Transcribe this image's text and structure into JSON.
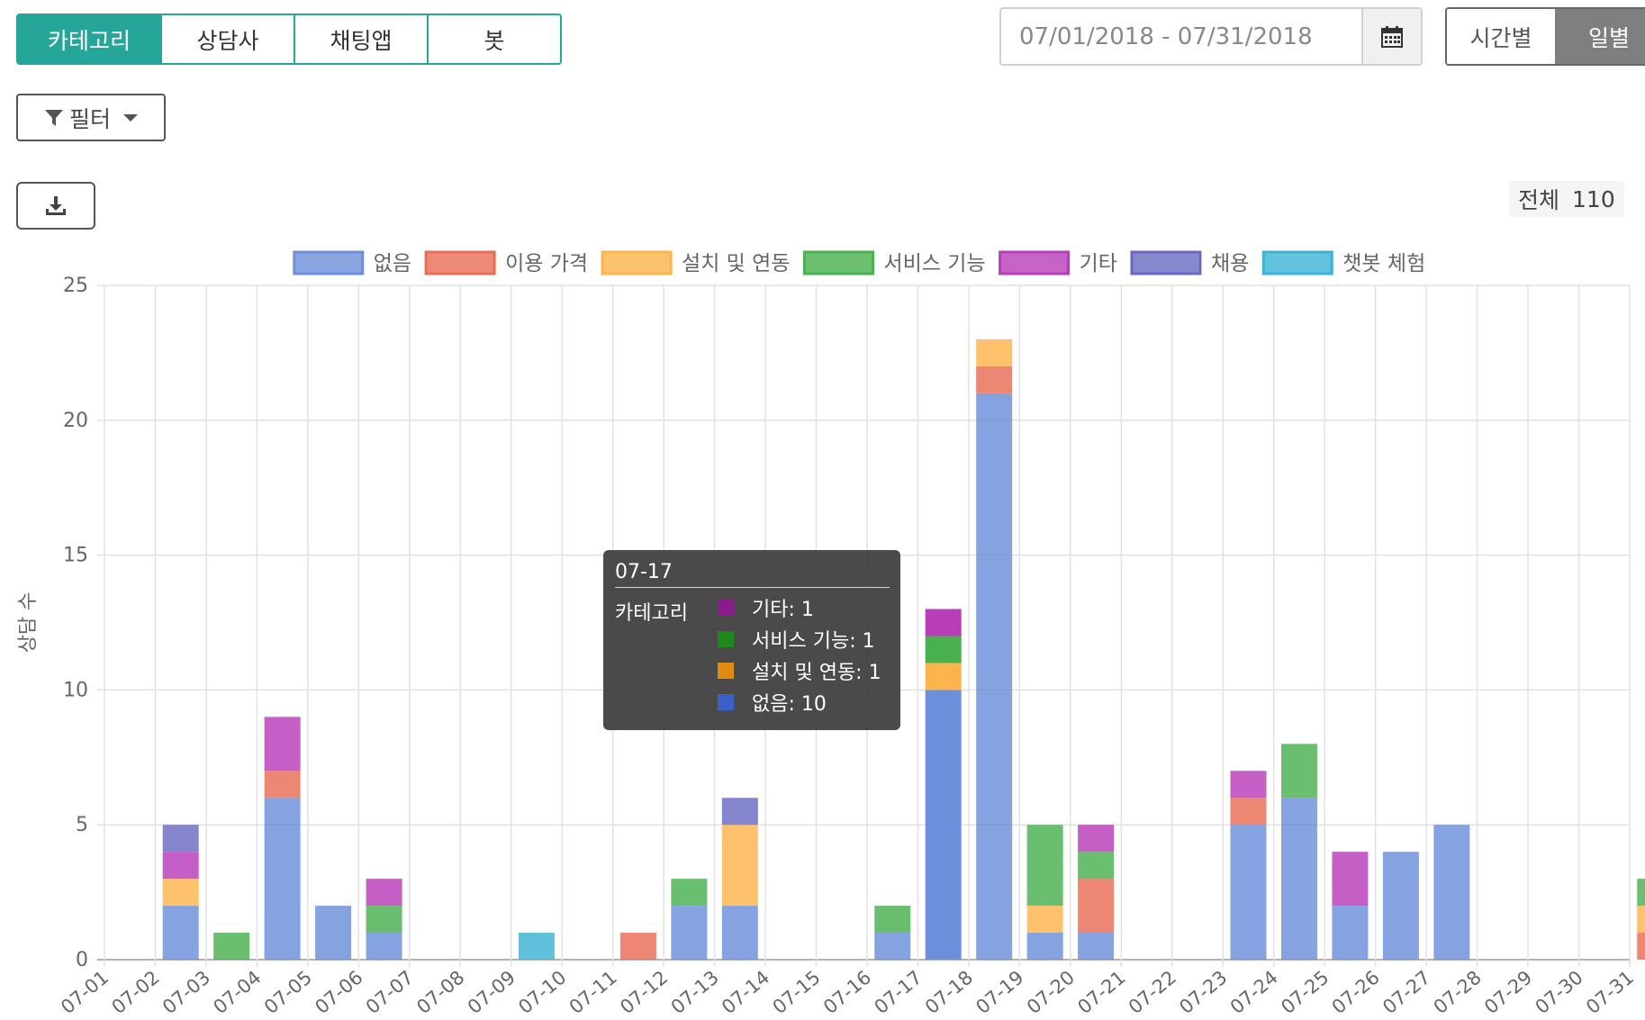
{
  "tabs": [
    "카테고리",
    "상담사",
    "채팅앱",
    "봇"
  ],
  "filter_label": "필터",
  "date_range": "07/01/2018 - 07/31/2018",
  "period": [
    "시간별",
    "일별"
  ],
  "total": {
    "label": "전체",
    "value": "110"
  },
  "colors": {
    "accent": "#26a599",
    "active_period": "#7f7f7f"
  },
  "chart_data": {
    "type": "bar",
    "stacked": true,
    "ylabel": "상담 수",
    "ylim": [
      0,
      25
    ],
    "yticks": [
      0,
      5,
      10,
      15,
      20,
      25
    ],
    "grid": true,
    "legend_position": "top",
    "categories": [
      "07-01",
      "07-02",
      "07-03",
      "07-04",
      "07-05",
      "07-06",
      "07-07",
      "07-08",
      "07-09",
      "07-10",
      "07-11",
      "07-12",
      "07-13",
      "07-14",
      "07-15",
      "07-16",
      "07-17",
      "07-18",
      "07-19",
      "07-20",
      "07-21",
      "07-22",
      "07-23",
      "07-24",
      "07-25",
      "07-26",
      "07-27",
      "07-28",
      "07-29",
      "07-30",
      "07-31"
    ],
    "series": [
      {
        "name": "없음",
        "color": "#6b8fdb",
        "values": [
          0,
          2,
          0,
          6,
          2,
          1,
          0,
          0,
          0,
          0,
          0,
          2,
          2,
          0,
          0,
          1,
          10,
          21,
          1,
          1,
          0,
          0,
          5,
          6,
          2,
          4,
          5,
          0,
          0,
          0,
          0
        ]
      },
      {
        "name": "이용 가격",
        "color": "#e96c55",
        "values": [
          0,
          0,
          0,
          1,
          0,
          0,
          0,
          0,
          0,
          0,
          1,
          0,
          0,
          0,
          0,
          0,
          0,
          1,
          0,
          2,
          0,
          0,
          1,
          0,
          0,
          0,
          0,
          0,
          0,
          0,
          1
        ]
      },
      {
        "name": "설치 및 연동",
        "color": "#fdb54b",
        "values": [
          0,
          1,
          0,
          0,
          0,
          0,
          0,
          0,
          0,
          0,
          0,
          0,
          3,
          0,
          0,
          0,
          1,
          1,
          1,
          0,
          0,
          0,
          0,
          0,
          0,
          0,
          0,
          0,
          0,
          0,
          1
        ]
      },
      {
        "name": "서비스 기능",
        "color": "#48b04f",
        "values": [
          0,
          0,
          1,
          0,
          0,
          1,
          0,
          0,
          0,
          0,
          0,
          1,
          0,
          0,
          0,
          1,
          1,
          0,
          3,
          1,
          0,
          0,
          0,
          2,
          0,
          0,
          0,
          0,
          0,
          0,
          1
        ]
      },
      {
        "name": "기타",
        "color": "#b93cb8",
        "values": [
          0,
          1,
          0,
          2,
          0,
          1,
          0,
          0,
          0,
          0,
          0,
          0,
          0,
          0,
          0,
          0,
          1,
          0,
          0,
          1,
          0,
          0,
          1,
          0,
          2,
          0,
          0,
          0,
          0,
          0,
          0
        ]
      },
      {
        "name": "채용",
        "color": "#6a6ac2",
        "values": [
          0,
          1,
          0,
          0,
          0,
          0,
          0,
          0,
          0,
          0,
          0,
          0,
          1,
          0,
          0,
          0,
          0,
          0,
          0,
          0,
          0,
          0,
          0,
          0,
          0,
          0,
          0,
          0,
          0,
          0,
          0
        ]
      },
      {
        "name": "챗봇 체험",
        "color": "#3cb3d3",
        "values": [
          0,
          0,
          0,
          0,
          0,
          0,
          0,
          0,
          1,
          0,
          0,
          0,
          0,
          0,
          0,
          0,
          0,
          0,
          0,
          0,
          0,
          0,
          0,
          0,
          0,
          0,
          0,
          0,
          0,
          0,
          0
        ]
      }
    ],
    "highlight_index": 16
  },
  "tooltip": {
    "title": "07-17",
    "label": "카테고리",
    "items": [
      {
        "text": "기타: 1",
        "color": "#8b1a8b"
      },
      {
        "text": "서비스 기능: 1",
        "color": "#1e8a1e"
      },
      {
        "text": "설치 및 연동: 1",
        "color": "#e08a12"
      },
      {
        "text": "없음: 10",
        "color": "#3b60c8"
      }
    ]
  }
}
